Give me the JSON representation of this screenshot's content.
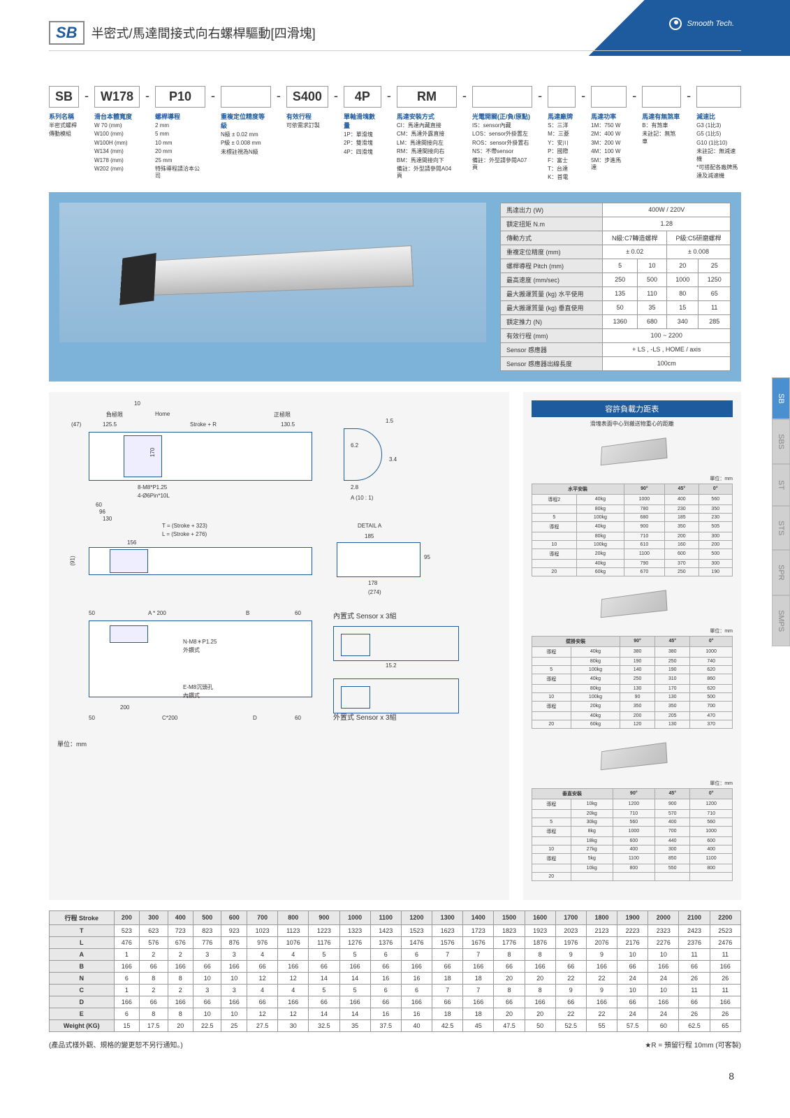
{
  "header": {
    "brand": "Smooth Tech.",
    "series": "SB",
    "title": "半密式/馬達間接式向右螺桿驅動[四滑塊]"
  },
  "partNumber": {
    "segments": [
      "SB",
      "W178",
      "P10",
      "",
      "S400",
      "4P",
      "RM",
      "",
      "",
      "",
      "",
      ""
    ],
    "columns": [
      {
        "label": "系列名稱",
        "items": [
          "半密式螺桿",
          "傳動模組"
        ]
      },
      {
        "label": "滑台本體寬度",
        "items": [
          "W 70 (mm)",
          "W100 (mm)",
          "W100H (mm)",
          "W134 (mm)",
          "W178 (mm)",
          "W202 (mm)"
        ]
      },
      {
        "label": "螺桿導程",
        "items": [
          "2 mm",
          "5 mm",
          "10 mm",
          "20 mm",
          "25 mm",
          "特殊導程請洽本公司"
        ]
      },
      {
        "label": "重複定位精度等級",
        "items": [
          "N級 ± 0.02 mm",
          "P級 ± 0.008 mm",
          "未標註視為N級"
        ]
      },
      {
        "label": "有效行程",
        "items": [
          "可依需求訂製"
        ]
      },
      {
        "label": "單軸滑塊數量",
        "items": [
          "1P：單滑塊",
          "2P：雙滑塊",
          "4P：四滑塊"
        ]
      },
      {
        "label": "馬達安裝方式",
        "items": [
          "CI：馬達內藏直接",
          "CM：馬達外露直接",
          "LM：馬達間接向左",
          "RM：馬達間接向右",
          "BM：馬達間接向下",
          "備註：外型請參閱A04頁"
        ]
      },
      {
        "label": "光電開關(正/負/原點)",
        "items": [
          "IS：sensor內藏",
          "LOS：sensor外掛置左",
          "ROS：sensor外掛置右",
          "NS：不帶sensor",
          "備註：外型請參閱A07頁"
        ]
      },
      {
        "label": "馬達廠牌",
        "items": [
          "S：三洋",
          "M：三菱",
          "Y：安川",
          "P：國際",
          "F：富士",
          "T：台達",
          "K：首電"
        ]
      },
      {
        "label": "馬達功率",
        "items": [
          "1M：750 W",
          "2M：400 W",
          "3M：200 W",
          "4M：100 W",
          "5M：步進馬達"
        ]
      },
      {
        "label": "馬達有無煞車",
        "items": [
          "B：有煞車",
          "未註記：無煞車"
        ]
      },
      {
        "label": "減速比",
        "items": [
          "G3 (1比3)",
          "G5 (1比5)",
          "G10 (1比10)",
          "未註記：無減速機",
          "*可搭配各廠牌馬",
          "達及減速機"
        ]
      }
    ]
  },
  "specTable": {
    "rows": [
      {
        "h": "馬達出力 (W)",
        "v": [
          "400W / 220V"
        ],
        "span": 4
      },
      {
        "h": "額定扭矩 N.m",
        "v": [
          "1.28"
        ],
        "span": 4
      },
      {
        "h": "傳動方式",
        "v": [
          "N級:C7轉造螺桿",
          "P級:C5研磨螺桿"
        ],
        "span": [
          2,
          2
        ]
      },
      {
        "h": "重複定位精度 (mm)",
        "v": [
          "± 0.02",
          "± 0.008"
        ],
        "span": [
          2,
          2
        ]
      },
      {
        "h": "螺桿導程 Pitch (mm)",
        "v": [
          "5",
          "10",
          "20",
          "25"
        ]
      },
      {
        "h": "最高速度 (mm/sec)",
        "v": [
          "250",
          "500",
          "1000",
          "1250"
        ]
      },
      {
        "h": "最大搬運質量 (kg) 水平使用",
        "v": [
          "135",
          "110",
          "80",
          "65"
        ]
      },
      {
        "h": "最大搬運質量 (kg) 垂直使用",
        "v": [
          "50",
          "35",
          "15",
          "11"
        ]
      },
      {
        "h": "額定推力 (N)",
        "v": [
          "1360",
          "680",
          "340",
          "285"
        ]
      },
      {
        "h": "有效行程 (mm)",
        "v": [
          "100 ~ 2200"
        ],
        "span": 4
      },
      {
        "h": "Sensor 感應器",
        "v": [
          "+ LS , -LS , HOME / axis"
        ],
        "span": 4
      },
      {
        "h": "Sensor 感應器出線長度",
        "v": [
          "100cm"
        ],
        "span": 4
      }
    ]
  },
  "drawings": {
    "unit": "單位：mm",
    "labels": {
      "negLimit": "負極限",
      "home": "Home",
      "posLimit": "正極限",
      "ten": "10",
      "fortyseven": "(47)",
      "s1": "125.5",
      "strokeR": "Stroke + R",
      "s2": "130.5",
      "h170": "170",
      "holes1": "8-M8*P1.25",
      "holes2": "4-Ø6Pin*10L",
      "d60": "60",
      "d96": "96",
      "d130": "130",
      "Tformula": "T = (Stroke + 323)",
      "Lformula": "L = (Stroke + 276)",
      "d156": "156",
      "d91": "(91)",
      "d50": "50",
      "A200": "A * 200",
      "B": "B",
      "d60b": "60",
      "nm8": "N-M8＊P1.25",
      "outer": "外鑽式",
      "d200": "200",
      "em8": "E-M8沉頭孔",
      "inner": "內鑽式",
      "C200": "C*200",
      "D": "D",
      "d15": "1.5",
      "d62": "6.2",
      "d34": "3.4",
      "d28": "2.8",
      "A10": "A (10 : 1)",
      "detailA": "DETAIL A",
      "d185": "185",
      "d95": "95",
      "d178": "178",
      "d274": "(274)",
      "sensorIn": "內置式 Sensor x 3組",
      "sensorOut": "外置式 Sensor x 3組",
      "d152": "15.2"
    }
  },
  "loadCapacity": {
    "title": "容許負載力距表",
    "subtitle": "滑塊表面中心到搬送物重心的距離",
    "angleLabels": [
      "90°",
      "45°",
      "0°"
    ],
    "unit": "單位：mm",
    "horiz": {
      "title": "水平安裝",
      "cols": [
        "90°",
        "45°",
        "0°"
      ],
      "rows": [
        {
          "p": "導程2",
          "w": "40kg",
          "v": [
            "1000",
            "400",
            "560"
          ]
        },
        {
          "p": "",
          "w": "80kg",
          "v": [
            "780",
            "230",
            "350"
          ]
        },
        {
          "p": "5",
          "w": "100kg",
          "v": [
            "680",
            "185",
            "230"
          ]
        },
        {
          "p": "導程",
          "w": "40kg",
          "v": [
            "900",
            "350",
            "505"
          ]
        },
        {
          "p": "",
          "w": "80kg",
          "v": [
            "710",
            "200",
            "300"
          ]
        },
        {
          "p": "10",
          "w": "100kg",
          "v": [
            "610",
            "160",
            "200"
          ]
        },
        {
          "p": "導程",
          "w": "20kg",
          "v": [
            "1100",
            "600",
            "500"
          ]
        },
        {
          "p": "",
          "w": "40kg",
          "v": [
            "790",
            "370",
            "300"
          ]
        },
        {
          "p": "20",
          "w": "60kg",
          "v": [
            "670",
            "250",
            "190"
          ]
        }
      ]
    },
    "wall": {
      "title": "壁掛安裝",
      "cols": [
        "90°",
        "45°",
        "0°"
      ],
      "rows": [
        {
          "p": "導程",
          "w": "40kg",
          "v": [
            "380",
            "380",
            "1000"
          ]
        },
        {
          "p": "",
          "w": "80kg",
          "v": [
            "190",
            "250",
            "740"
          ]
        },
        {
          "p": "5",
          "w": "100kg",
          "v": [
            "140",
            "190",
            "620"
          ]
        },
        {
          "p": "導程",
          "w": "40kg",
          "v": [
            "250",
            "310",
            "860"
          ]
        },
        {
          "p": "",
          "w": "80kg",
          "v": [
            "130",
            "170",
            "620"
          ]
        },
        {
          "p": "10",
          "w": "100kg",
          "v": [
            "90",
            "130",
            "500"
          ]
        },
        {
          "p": "導程",
          "w": "20kg",
          "v": [
            "350",
            "350",
            "700"
          ]
        },
        {
          "p": "",
          "w": "40kg",
          "v": [
            "200",
            "205",
            "470"
          ]
        },
        {
          "p": "20",
          "w": "60kg",
          "v": [
            "120",
            "130",
            "370"
          ]
        }
      ]
    },
    "vert": {
      "title": "垂直安裝",
      "cols": [
        "90°",
        "45°",
        "0°"
      ],
      "rows": [
        {
          "p": "導程",
          "w": "10kg",
          "v": [
            "1200",
            "900",
            "1200"
          ]
        },
        {
          "p": "",
          "w": "20kg",
          "v": [
            "710",
            "570",
            "710"
          ]
        },
        {
          "p": "5",
          "w": "30kg",
          "v": [
            "560",
            "400",
            "560"
          ]
        },
        {
          "p": "導程",
          "w": "8kg",
          "v": [
            "1000",
            "700",
            "1000"
          ]
        },
        {
          "p": "",
          "w": "18kg",
          "v": [
            "600",
            "440",
            "600"
          ]
        },
        {
          "p": "10",
          "w": "27kg",
          "v": [
            "400",
            "300",
            "400"
          ]
        },
        {
          "p": "導程",
          "w": "5kg",
          "v": [
            "1100",
            "850",
            "1100"
          ]
        },
        {
          "p": "",
          "w": "10kg",
          "v": [
            "800",
            "550",
            "800"
          ]
        },
        {
          "p": "20",
          "w": "",
          "v": [
            "",
            "",
            ""
          ]
        }
      ]
    }
  },
  "sideTabs": [
    "SB",
    "SBS",
    "ST",
    "STS",
    "SPR",
    "SMPS"
  ],
  "strokeTable": {
    "header": "行程 Stroke",
    "strokes": [
      "200",
      "300",
      "400",
      "500",
      "600",
      "700",
      "800",
      "900",
      "1000",
      "1100",
      "1200",
      "1300",
      "1400",
      "1500",
      "1600",
      "1700",
      "1800",
      "1900",
      "2000",
      "2100",
      "2200"
    ],
    "rows": [
      {
        "h": "T",
        "v": [
          "523",
          "623",
          "723",
          "823",
          "923",
          "1023",
          "1123",
          "1223",
          "1323",
          "1423",
          "1523",
          "1623",
          "1723",
          "1823",
          "1923",
          "2023",
          "2123",
          "2223",
          "2323",
          "2423",
          "2523"
        ]
      },
      {
        "h": "L",
        "v": [
          "476",
          "576",
          "676",
          "776",
          "876",
          "976",
          "1076",
          "1176",
          "1276",
          "1376",
          "1476",
          "1576",
          "1676",
          "1776",
          "1876",
          "1976",
          "2076",
          "2176",
          "2276",
          "2376",
          "2476"
        ]
      },
      {
        "h": "A",
        "v": [
          "1",
          "2",
          "2",
          "3",
          "3",
          "4",
          "4",
          "5",
          "5",
          "6",
          "6",
          "7",
          "7",
          "8",
          "8",
          "9",
          "9",
          "10",
          "10",
          "11",
          "11"
        ]
      },
      {
        "h": "B",
        "v": [
          "166",
          "66",
          "166",
          "66",
          "166",
          "66",
          "166",
          "66",
          "166",
          "66",
          "166",
          "66",
          "166",
          "66",
          "166",
          "66",
          "166",
          "66",
          "166",
          "66",
          "166"
        ]
      },
      {
        "h": "N",
        "v": [
          "6",
          "8",
          "8",
          "10",
          "10",
          "12",
          "12",
          "14",
          "14",
          "16",
          "16",
          "18",
          "18",
          "20",
          "20",
          "22",
          "22",
          "24",
          "24",
          "26",
          "26"
        ]
      },
      {
        "h": "C",
        "v": [
          "1",
          "2",
          "2",
          "3",
          "3",
          "4",
          "4",
          "5",
          "5",
          "6",
          "6",
          "7",
          "7",
          "8",
          "8",
          "9",
          "9",
          "10",
          "10",
          "11",
          "11"
        ]
      },
      {
        "h": "D",
        "v": [
          "166",
          "66",
          "166",
          "66",
          "166",
          "66",
          "166",
          "66",
          "166",
          "66",
          "166",
          "66",
          "166",
          "66",
          "166",
          "66",
          "166",
          "66",
          "166",
          "66",
          "166"
        ]
      },
      {
        "h": "E",
        "v": [
          "6",
          "8",
          "8",
          "10",
          "10",
          "12",
          "12",
          "14",
          "14",
          "16",
          "16",
          "18",
          "18",
          "20",
          "20",
          "22",
          "22",
          "24",
          "24",
          "26",
          "26"
        ]
      },
      {
        "h": "Weight (KG)",
        "v": [
          "15",
          "17.5",
          "20",
          "22.5",
          "25",
          "27.5",
          "30",
          "32.5",
          "35",
          "37.5",
          "40",
          "42.5",
          "45",
          "47.5",
          "50",
          "52.5",
          "55",
          "57.5",
          "60",
          "62.5",
          "65"
        ]
      }
    ]
  },
  "footer": {
    "left": "(產品式樣外觀、規格的變更恕不另行通知。)",
    "right": "★R = 預留行程 10mm (可客製)",
    "page": "8"
  }
}
